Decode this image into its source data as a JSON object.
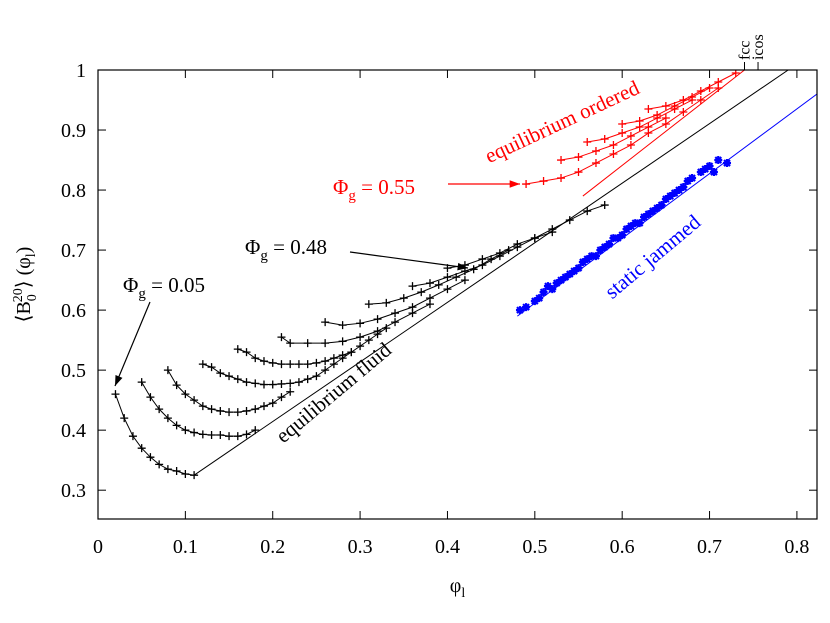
{
  "chart_data": {
    "type": "line",
    "xlabel": [
      "φ",
      "l"
    ],
    "ylabel": [
      "⟨B",
      "0",
      "20",
      "⟩ (φ",
      "l",
      ")"
    ],
    "xlim": [
      0,
      0.823
    ],
    "ylim": [
      0.252,
      1
    ],
    "xticks": [
      0,
      0.1,
      0.2,
      0.3,
      0.4,
      0.5,
      0.6,
      0.7,
      0.8
    ],
    "yticks": [
      0.3,
      0.4,
      0.5,
      0.6,
      0.7,
      0.8,
      0.9,
      1
    ],
    "top_ticks": [
      {
        "value": 0.74,
        "label": "fcc"
      },
      {
        "value": 0.7555,
        "label": "icos"
      }
    ],
    "series": [
      {
        "color": "#000000",
        "marker": null,
        "x": [
          0.11,
          0.79
        ],
        "values": [
          0.325,
          1.0
        ]
      },
      {
        "color": "#ff0000",
        "marker": null,
        "x": [
          0.555,
          0.74
        ],
        "values": [
          0.79,
          1.0
        ]
      },
      {
        "color": "#0000ff",
        "marker": null,
        "x": [
          0.48,
          0.823
        ],
        "values": [
          0.59,
          0.96
        ]
      },
      {
        "color": "#000000",
        "marker": "plus",
        "x": [
          0.02,
          0.03,
          0.04,
          0.05,
          0.06,
          0.07,
          0.08,
          0.09,
          0.1,
          0.11
        ],
        "values": [
          0.46,
          0.42,
          0.39,
          0.37,
          0.355,
          0.343,
          0.335,
          0.332,
          0.327,
          0.325
        ]
      },
      {
        "color": "#000000",
        "marker": "plus",
        "x": [
          0.05,
          0.06,
          0.07,
          0.08,
          0.09,
          0.1,
          0.11,
          0.12,
          0.13,
          0.14,
          0.15,
          0.16,
          0.17,
          0.18
        ],
        "values": [
          0.48,
          0.455,
          0.435,
          0.42,
          0.408,
          0.4,
          0.396,
          0.393,
          0.392,
          0.392,
          0.39,
          0.39,
          0.393,
          0.4
        ]
      },
      {
        "color": "#000000",
        "marker": "plus",
        "x": [
          0.08,
          0.09,
          0.1,
          0.11,
          0.12,
          0.13,
          0.14,
          0.15,
          0.16,
          0.17,
          0.18,
          0.19,
          0.2,
          0.21,
          0.22
        ],
        "values": [
          0.5,
          0.475,
          0.46,
          0.45,
          0.44,
          0.435,
          0.432,
          0.43,
          0.43,
          0.432,
          0.435,
          0.44,
          0.445,
          0.455,
          0.464
        ]
      },
      {
        "color": "#000000",
        "marker": "plus",
        "x": [
          0.12,
          0.13,
          0.14,
          0.15,
          0.16,
          0.17,
          0.18,
          0.19,
          0.2,
          0.21,
          0.22,
          0.23,
          0.24,
          0.25,
          0.26,
          0.27,
          0.28,
          0.29
        ],
        "values": [
          0.51,
          0.505,
          0.495,
          0.49,
          0.485,
          0.48,
          0.478,
          0.476,
          0.476,
          0.477,
          0.478,
          0.48,
          0.485,
          0.49,
          0.5,
          0.51,
          0.52,
          0.53
        ]
      },
      {
        "color": "#000000",
        "marker": "plus",
        "x": [
          0.16,
          0.17,
          0.18,
          0.19,
          0.2,
          0.21,
          0.22,
          0.23,
          0.24,
          0.25,
          0.26,
          0.27,
          0.28,
          0.29,
          0.3,
          0.31,
          0.32,
          0.33
        ],
        "values": [
          0.535,
          0.53,
          0.52,
          0.515,
          0.512,
          0.51,
          0.51,
          0.51,
          0.51,
          0.512,
          0.515,
          0.52,
          0.525,
          0.53,
          0.54,
          0.55,
          0.56,
          0.57
        ]
      },
      {
        "color": "#000000",
        "marker": "plus",
        "x": [
          0.21,
          0.22,
          0.24,
          0.26,
          0.28,
          0.3,
          0.32,
          0.34,
          0.36,
          0.38
        ],
        "values": [
          0.555,
          0.545,
          0.545,
          0.545,
          0.548,
          0.555,
          0.565,
          0.58,
          0.595,
          0.61
        ]
      },
      {
        "color": "#000000",
        "marker": "plus",
        "x": [
          0.26,
          0.28,
          0.3,
          0.32,
          0.34,
          0.36,
          0.38,
          0.4,
          0.42
        ],
        "values": [
          0.58,
          0.575,
          0.578,
          0.585,
          0.595,
          0.605,
          0.62,
          0.635,
          0.65
        ]
      },
      {
        "color": "#000000",
        "marker": "plus",
        "x": [
          0.31,
          0.33,
          0.35,
          0.37,
          0.39,
          0.41,
          0.43,
          0.45,
          0.47
        ],
        "values": [
          0.61,
          0.612,
          0.62,
          0.63,
          0.642,
          0.655,
          0.668,
          0.685,
          0.7
        ]
      },
      {
        "color": "#000000",
        "marker": "plus",
        "x": [
          0.36,
          0.38,
          0.4,
          0.42,
          0.44,
          0.46,
          0.48,
          0.5,
          0.52
        ],
        "values": [
          0.64,
          0.645,
          0.655,
          0.665,
          0.675,
          0.69,
          0.705,
          0.72,
          0.73
        ]
      },
      {
        "color": "#000000",
        "marker": "plus",
        "x": [
          0.4,
          0.42,
          0.44,
          0.46,
          0.48,
          0.5,
          0.52,
          0.54,
          0.56,
          0.58
        ],
        "values": [
          0.67,
          0.675,
          0.685,
          0.695,
          0.71,
          0.72,
          0.735,
          0.75,
          0.765,
          0.775
        ]
      },
      {
        "color": "#ff0000",
        "marker": "plus",
        "x": [
          0.49,
          0.51,
          0.53,
          0.55,
          0.57,
          0.59,
          0.61,
          0.63,
          0.65,
          0.67,
          0.69,
          0.71
        ],
        "values": [
          0.81,
          0.815,
          0.82,
          0.83,
          0.845,
          0.86,
          0.875,
          0.895,
          0.91,
          0.93,
          0.95,
          0.97
        ]
      },
      {
        "color": "#ff0000",
        "marker": "plus",
        "x": [
          0.53,
          0.55,
          0.57,
          0.59,
          0.61,
          0.63,
          0.65
        ],
        "values": [
          0.85,
          0.855,
          0.865,
          0.875,
          0.89,
          0.905,
          0.92
        ]
      },
      {
        "color": "#ff0000",
        "marker": "plus",
        "x": [
          0.56,
          0.58,
          0.6,
          0.62,
          0.64,
          0.66,
          0.68
        ],
        "values": [
          0.88,
          0.885,
          0.895,
          0.905,
          0.92,
          0.935,
          0.95
        ]
      },
      {
        "color": "#ff0000",
        "marker": "plus",
        "x": [
          0.6,
          0.62,
          0.64,
          0.66,
          0.68,
          0.7
        ],
        "values": [
          0.91,
          0.915,
          0.925,
          0.94,
          0.955,
          0.97
        ]
      },
      {
        "color": "#ff0000",
        "marker": "plus",
        "x": [
          0.63,
          0.65,
          0.67,
          0.69,
          0.71,
          0.73
        ],
        "values": [
          0.935,
          0.94,
          0.95,
          0.965,
          0.98,
          0.995
        ]
      },
      {
        "color": "#0000ff",
        "marker": "star",
        "x": [
          0.483,
          0.49,
          0.5,
          0.505,
          0.51,
          0.515,
          0.52,
          0.525,
          0.53,
          0.535,
          0.54,
          0.545,
          0.55,
          0.555,
          0.56,
          0.565,
          0.57,
          0.575,
          0.58,
          0.585,
          0.59,
          0.595,
          0.6,
          0.605,
          0.61,
          0.615,
          0.62,
          0.625,
          0.63,
          0.635,
          0.64,
          0.645,
          0.65,
          0.655,
          0.66,
          0.665,
          0.67,
          0.675,
          0.68,
          0.69,
          0.695,
          0.7,
          0.705,
          0.71,
          0.72
        ],
        "values": [
          0.6,
          0.605,
          0.615,
          0.62,
          0.63,
          0.64,
          0.635,
          0.645,
          0.65,
          0.655,
          0.66,
          0.665,
          0.67,
          0.68,
          0.685,
          0.69,
          0.69,
          0.7,
          0.705,
          0.71,
          0.72,
          0.72,
          0.725,
          0.735,
          0.74,
          0.745,
          0.745,
          0.755,
          0.76,
          0.765,
          0.77,
          0.775,
          0.785,
          0.79,
          0.795,
          0.8,
          0.805,
          0.815,
          0.82,
          0.83,
          0.835,
          0.84,
          0.83,
          0.85,
          0.845
        ]
      }
    ],
    "annotations": [
      {
        "text": [
          "Φ",
          "g",
          " = 0.05"
        ],
        "color": "#000000"
      },
      {
        "text": [
          "Φ",
          "g",
          " = 0.48"
        ],
        "color": "#000000"
      },
      {
        "text": [
          "Φ",
          "g",
          " = 0.55"
        ],
        "color": "#ff0000"
      },
      {
        "text": [
          "equilibrium ordered"
        ],
        "color": "#ff0000"
      },
      {
        "text": [
          "equilibrium fluid"
        ],
        "color": "#000000"
      },
      {
        "text": [
          "static jammed"
        ],
        "color": "#0000ff"
      }
    ]
  }
}
